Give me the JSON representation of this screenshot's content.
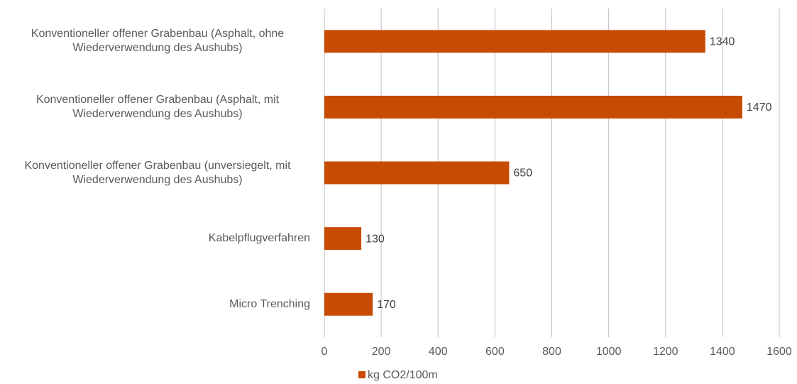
{
  "chart_data": {
    "type": "bar",
    "orientation": "horizontal",
    "categories": [
      "Konventioneller offener Grabenbau (Asphalt, ohne Wiederverwendung des Aushubs)",
      "Konventioneller offener Grabenbau (Asphalt, mit Wiederverwendung des Aushubs)",
      "Konventioneller offener Grabenbau (unversiegelt, mit Wiederverwendung des Aushubs)",
      "Kabelpflugverfahren",
      "Micro Trenching"
    ],
    "series": [
      {
        "name": "kg CO2/100m",
        "color": "#c84b03",
        "values": [
          1340,
          1470,
          650,
          130,
          170
        ]
      }
    ],
    "xlim": [
      0,
      1600
    ],
    "xticks": [
      0,
      200,
      400,
      600,
      800,
      1000,
      1200,
      1400,
      1600
    ],
    "grid": true,
    "legend": "bottom"
  }
}
